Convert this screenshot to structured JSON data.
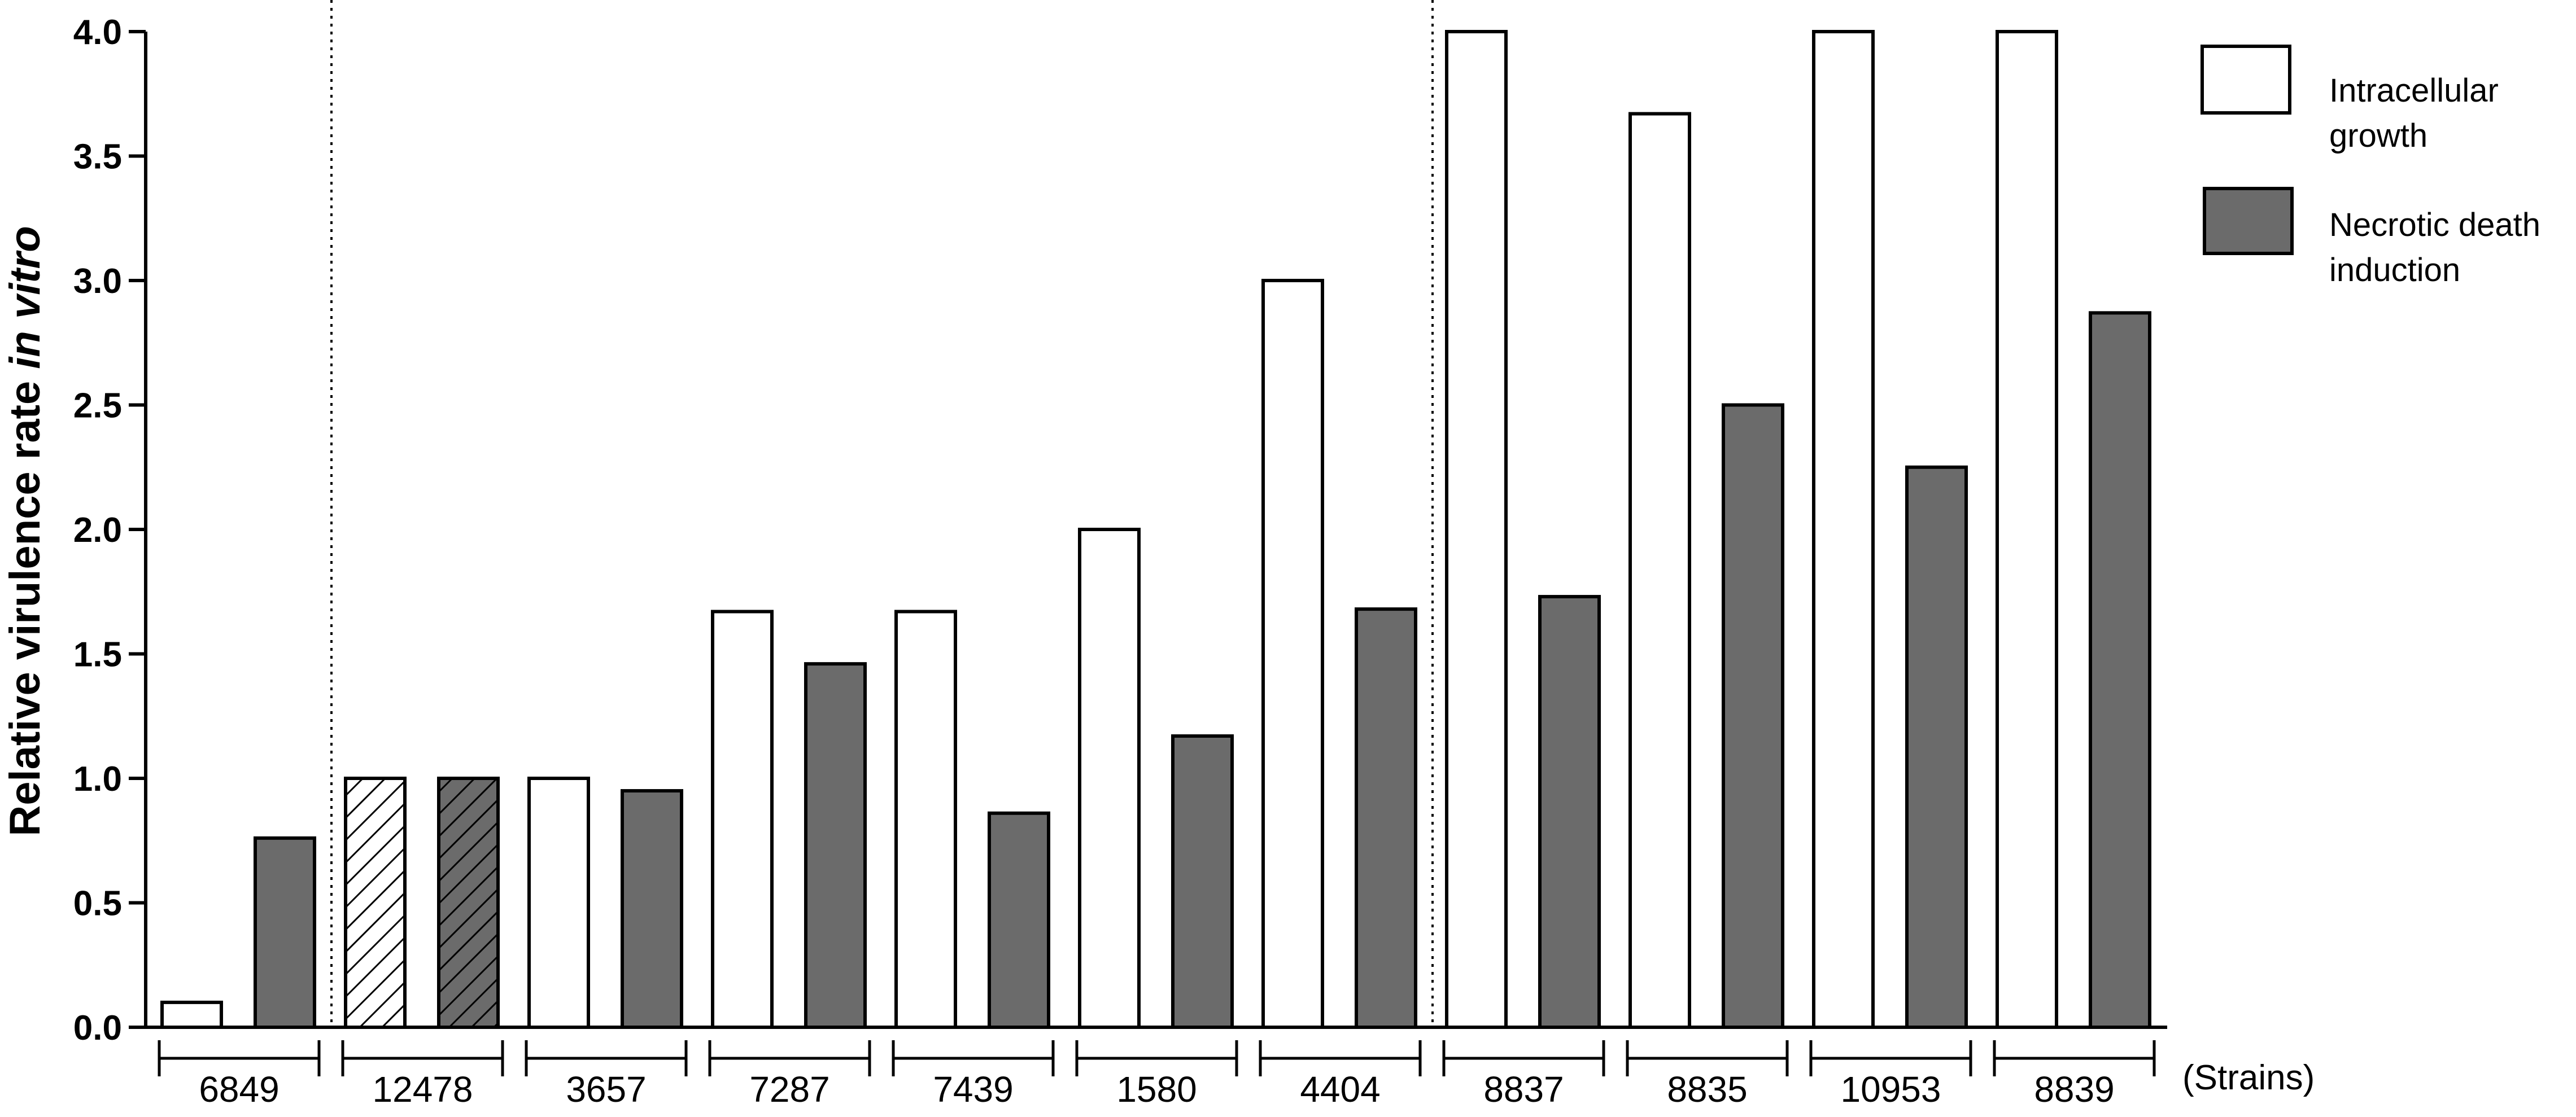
{
  "chart_data": {
    "type": "bar",
    "ylabel_main": "Relative virulence rate ",
    "ylabel_italic": "in vitro",
    "xunit": "(Strains)",
    "ylim": [
      0,
      4.0
    ],
    "yticks": [
      "0.0",
      "0.5",
      "1.0",
      "1.5",
      "2.0",
      "2.5",
      "3.0",
      "3.5",
      "4.0"
    ],
    "categories": [
      "6849",
      "12478",
      "3657",
      "7287",
      "7439",
      "1580",
      "4404",
      "8837",
      "8835",
      "10953",
      "8839"
    ],
    "hatched_category": "12478",
    "separators_after": [
      "6849",
      "4404"
    ],
    "grid": false,
    "legend_position": "top-right",
    "series": [
      {
        "name": "Intracellular growth",
        "legend_lines": [
          "Intracellular",
          "growth"
        ],
        "color": "#ffffff",
        "values": [
          0.1,
          1.0,
          1.0,
          1.67,
          1.67,
          2.0,
          3.0,
          4.0,
          3.67,
          4.0,
          4.0
        ]
      },
      {
        "name": "Necrotic death induction",
        "legend_lines": [
          "Necrotic death",
          "induction"
        ],
        "color": "#6b6b6b",
        "values": [
          0.76,
          1.0,
          0.95,
          1.46,
          0.86,
          1.17,
          1.68,
          1.73,
          2.5,
          2.25,
          2.87
        ]
      }
    ]
  }
}
